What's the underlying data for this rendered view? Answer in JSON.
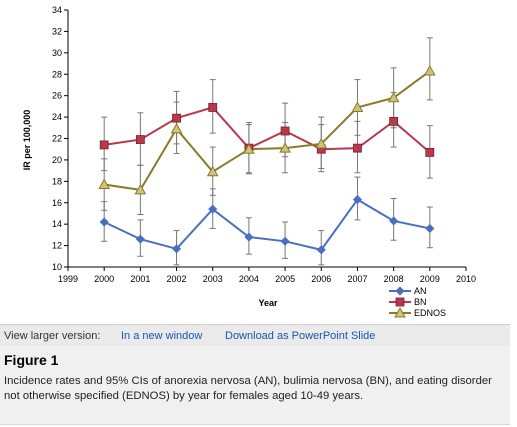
{
  "chart_data": {
    "type": "line",
    "x": [
      2000,
      2001,
      2002,
      2003,
      2004,
      2005,
      2006,
      2007,
      2008,
      2009
    ],
    "xticks": [
      "1999",
      "2000",
      "2001",
      "2002",
      "2003",
      "2004",
      "2005",
      "2006",
      "2007",
      "2008",
      "2009",
      "2010"
    ],
    "xlim": [
      1999,
      2010
    ],
    "ylim": [
      10,
      34
    ],
    "yticks": [
      "10",
      "12",
      "14",
      "16",
      "18",
      "20",
      "22",
      "24",
      "26",
      "28",
      "30",
      "32",
      "34"
    ],
    "xlabel": "Year",
    "ylabel": "IR per 100,000",
    "grid": false,
    "legend_position": "bottom-right",
    "series": [
      {
        "name": "AN",
        "color": "#4a6fbf",
        "marker": "diamond",
        "values": [
          14.2,
          12.6,
          11.7,
          15.4,
          12.8,
          12.4,
          11.6,
          16.3,
          14.3,
          13.6
        ],
        "lower": [
          12.4,
          11.0,
          10.2,
          13.6,
          11.2,
          10.8,
          10.2,
          14.4,
          12.5,
          11.8
        ],
        "upper": [
          16.1,
          14.4,
          13.4,
          17.3,
          14.6,
          14.2,
          13.4,
          18.4,
          16.4,
          15.6
        ]
      },
      {
        "name": "BN",
        "color": "#b8384c",
        "marker": "square",
        "values": [
          21.4,
          21.9,
          23.9,
          24.9,
          21.1,
          22.7,
          21.0,
          21.1,
          23.6,
          20.7
        ],
        "lower": [
          19.0,
          19.5,
          21.5,
          22.5,
          18.8,
          20.3,
          18.9,
          18.8,
          21.2,
          18.3
        ],
        "upper": [
          24.0,
          24.4,
          26.4,
          27.5,
          23.5,
          25.3,
          23.3,
          23.6,
          26.3,
          23.2
        ]
      },
      {
        "name": "EDNOS",
        "color": "#8a7a2c",
        "marker": "triangle",
        "values": [
          17.7,
          17.2,
          22.9,
          18.9,
          21.0,
          21.1,
          21.5,
          24.9,
          25.8,
          28.3
        ],
        "lower": [
          15.3,
          14.9,
          20.6,
          16.7,
          18.7,
          18.8,
          19.2,
          22.3,
          23.0,
          25.6
        ],
        "upper": [
          20.1,
          19.5,
          25.4,
          21.2,
          23.3,
          23.5,
          24.0,
          27.5,
          28.6,
          31.4
        ]
      }
    ]
  },
  "links": {
    "label": "View larger version:",
    "new_window": "In a new window",
    "powerpoint": "Download as PowerPoint Slide"
  },
  "figure": {
    "title": "Figure 1",
    "caption": "Incidence rates and 95% CIs of anorexia nervosa (AN), bulimia nervosa (BN), and eating disorder not otherwise specified (EDNOS) by year for females aged 10-49 years."
  }
}
